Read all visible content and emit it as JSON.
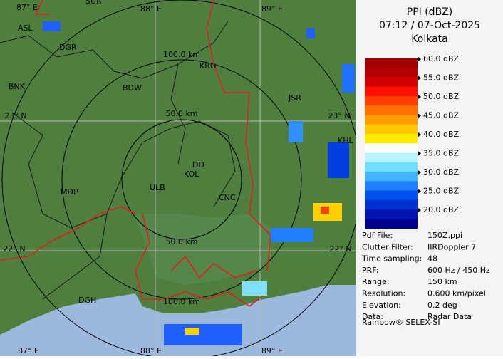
{
  "panel": {
    "title": "PPI (dBZ)",
    "time": "07:12 / 07-Oct-2025",
    "site": "Kolkata",
    "legend": [
      {
        "label": "60.0 dBZ",
        "colors": [
          "#a00000",
          "#b40000"
        ]
      },
      {
        "label": "55.0 dBZ",
        "colors": [
          "#d20000",
          "#ff1000"
        ]
      },
      {
        "label": "50.0 dBZ",
        "colors": [
          "#ff4000",
          "#ff7000"
        ]
      },
      {
        "label": "45.0 dBZ",
        "colors": [
          "#ff9c00",
          "#ffc800"
        ]
      },
      {
        "label": "40.0 dBZ",
        "colors": [
          "#ffec00",
          "#ffffff"
        ]
      },
      {
        "label": "35.0 dBZ",
        "colors": [
          "#b8f4ff",
          "#70e0ff"
        ]
      },
      {
        "label": "30.0 dBZ",
        "colors": [
          "#40b4ff",
          "#2080ff"
        ]
      },
      {
        "label": "25.0 dBZ",
        "colors": [
          "#0050f0",
          "#0030d0"
        ]
      },
      {
        "label": "20.0 dBZ",
        "colors": [
          "#0014b0",
          "#000090"
        ]
      }
    ],
    "info": [
      [
        "Pdf File:",
        "150Z.ppi"
      ],
      [
        "Clutter Filter:",
        "IIRDoppler 7"
      ],
      [
        "Time sampling:",
        "48"
      ],
      [
        "PRF:",
        "600 Hz / 450 Hz"
      ],
      [
        "Range:",
        "150 km"
      ],
      [
        "Resolution:",
        "0.600 km/pixel"
      ],
      [
        "Elevation:",
        "0.2 deg"
      ],
      [
        "Data:",
        "Radar Data"
      ]
    ],
    "footer": "Rainbow® SELEX-SI"
  },
  "map": {
    "grid_labels": [
      "87° E",
      "88° E",
      "89° E",
      "23° N",
      "23° N",
      "22° N",
      "22° N",
      "87° E",
      "88° E",
      "89° E"
    ],
    "cities": [
      "SUR",
      "ASL",
      "DGR",
      "BNK",
      "BDW",
      "KRG",
      "JSR",
      "KHL",
      "MDP",
      "DD",
      "KOL",
      "ULB",
      "CNC",
      "DGH"
    ],
    "ranges": [
      "100.0 km",
      "50.0 km",
      "50.0 km",
      "100.0 km"
    ]
  }
}
